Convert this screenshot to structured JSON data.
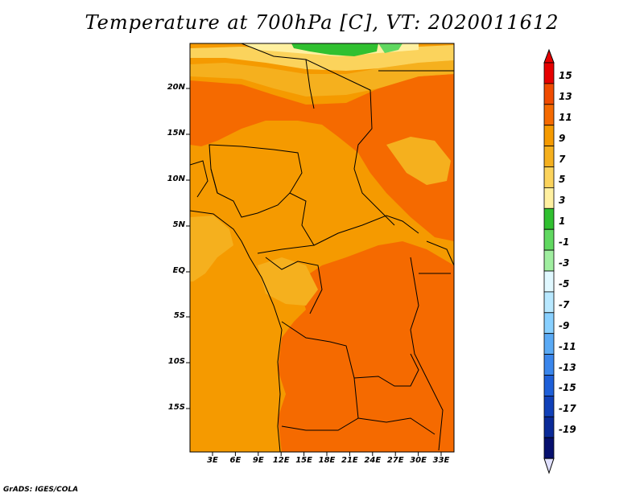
{
  "title": "Temperature at 700hPa [C], VT: 2020011612",
  "credit": "GrADS: IGES/COLA",
  "map": {
    "lat_labels": [
      "20N",
      "15N",
      "10N",
      "5N",
      "EQ",
      "5S",
      "10S",
      "15S"
    ],
    "lon_labels": [
      "3E",
      "6E",
      "9E",
      "12E",
      "15E",
      "18E",
      "21E",
      "24E",
      "27E",
      "30E",
      "33E"
    ]
  },
  "colorbar": {
    "labels": [
      "15",
      "13",
      "11",
      "9",
      "7",
      "5",
      "3",
      "1",
      "-1",
      "-3",
      "-5",
      "-7",
      "-9",
      "-11",
      "-13",
      "-15",
      "-17",
      "-19"
    ],
    "colors": [
      "#e60000",
      "#f04b00",
      "#f56a00",
      "#f59a00",
      "#f5b01e",
      "#fbd35c",
      "#fff0a0",
      "#30c030",
      "#60d860",
      "#a0eea0",
      "#e0f8ff",
      "#b8e8ff",
      "#88d0ff",
      "#5aaaf5",
      "#3a86ec",
      "#1e5fd8",
      "#1040b8",
      "#0a2a98",
      "#06106e"
    ],
    "triangle_top_color": "#e60000",
    "triangle_bottom_color": "#e0e0ff"
  },
  "field_colors": {
    "c11": "#f56a00",
    "c9": "#f59a00",
    "c7": "#f5b01e",
    "c5": "#fbd35c",
    "c3": "#fff0a0",
    "c1": "#30c030",
    "cm1": "#60d860"
  }
}
